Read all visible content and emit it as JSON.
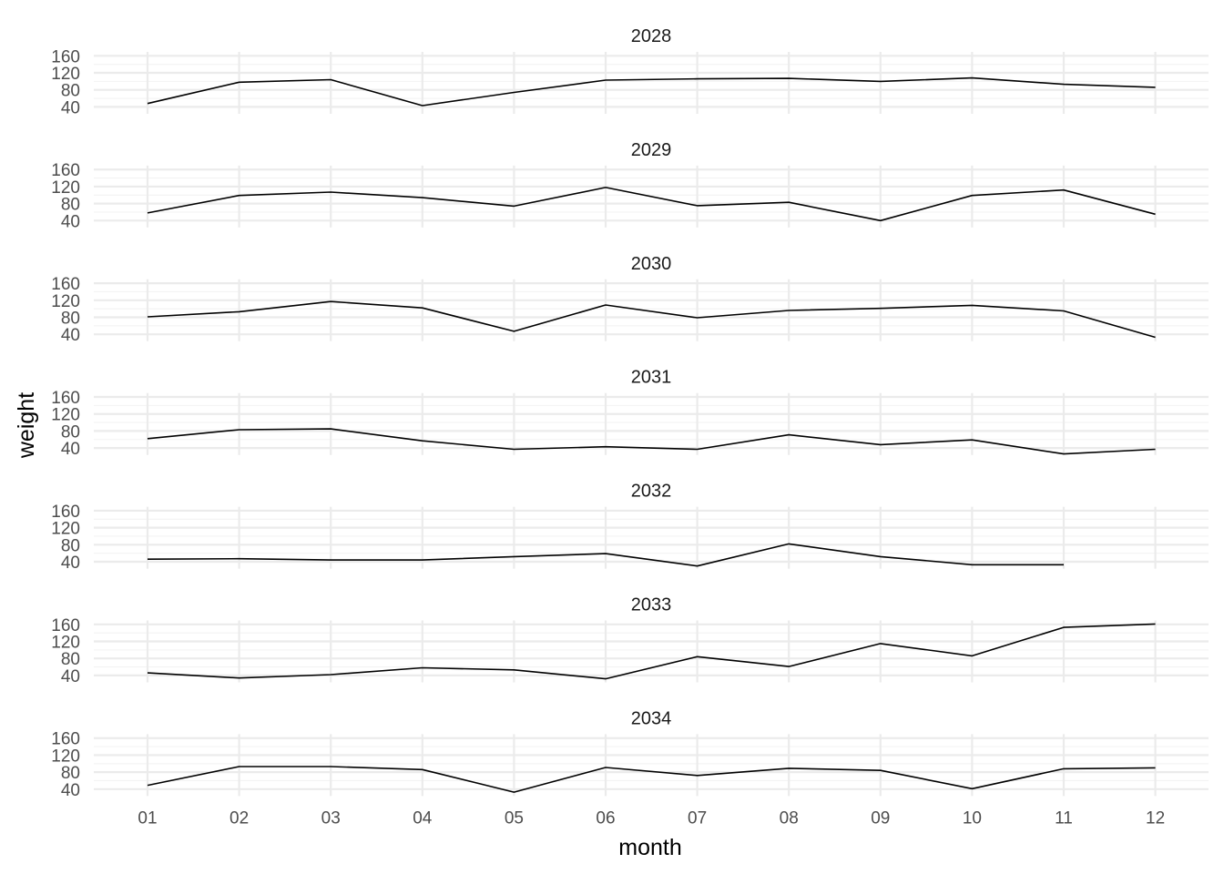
{
  "chart_data": {
    "type": "line",
    "xlabel": "month",
    "ylabel": "weight",
    "x": [
      "01",
      "02",
      "03",
      "04",
      "05",
      "06",
      "07",
      "08",
      "09",
      "10",
      "11",
      "12"
    ],
    "y_ticks": [
      40,
      80,
      120,
      160
    ],
    "ylim": [
      28,
      165
    ],
    "grid": true,
    "line_color": "#000000",
    "panels": [
      {
        "title": "2028",
        "values": [
          48,
          98,
          104,
          43,
          74,
          103,
          106,
          107,
          100,
          108,
          93,
          86
        ]
      },
      {
        "title": "2029",
        "values": [
          58,
          99,
          107,
          94,
          74,
          118,
          75,
          83,
          40,
          99,
          112,
          55
        ]
      },
      {
        "title": "2030",
        "values": [
          81,
          93,
          117,
          102,
          47,
          109,
          79,
          96,
          101,
          108,
          95,
          33
        ]
      },
      {
        "title": "2031",
        "values": [
          62,
          83,
          85,
          57,
          37,
          43,
          37,
          71,
          48,
          59,
          26,
          37
        ]
      },
      {
        "title": "2032",
        "values": [
          46,
          47,
          44,
          44,
          52,
          59,
          30,
          82,
          52,
          33,
          33,
          null
        ]
      },
      {
        "title": "2033",
        "values": [
          46,
          34,
          42,
          58,
          53,
          32,
          84,
          61,
          115,
          86,
          153,
          161
        ]
      },
      {
        "title": "2034",
        "values": [
          49,
          93,
          93,
          86,
          33,
          91,
          72,
          89,
          84,
          41,
          88,
          90
        ]
      }
    ]
  }
}
